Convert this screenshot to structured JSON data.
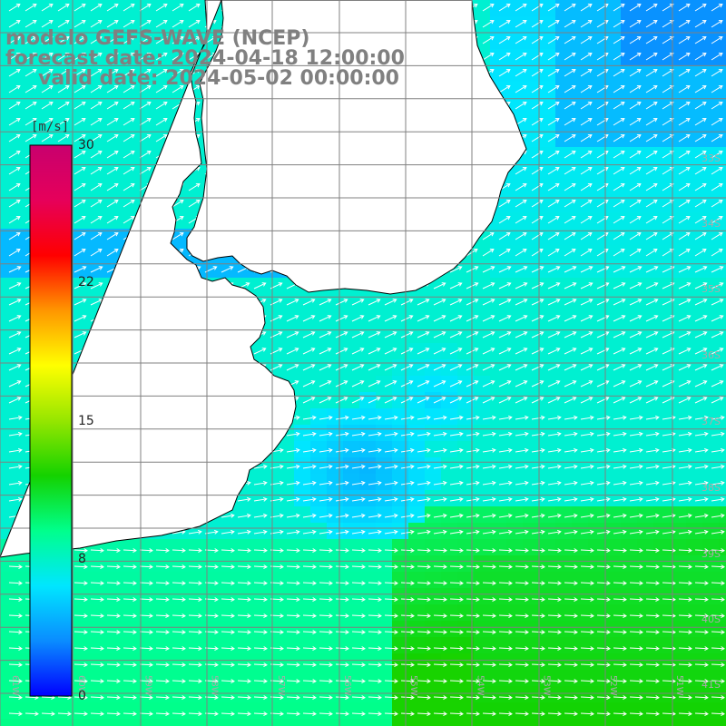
{
  "title": {
    "line1": "modelo GEFS-WAVE (NCEP)",
    "line2": "forecast date: 2024-04-18 12:00:00",
    "line3": "valid date: 2024-05-02 00:00:00"
  },
  "colorbar": {
    "unit": "[m/s]",
    "ticks": [
      "30",
      "22",
      "15",
      "8",
      "0"
    ],
    "stops": [
      "#0000ff",
      "#0a8cff",
      "#00e6ff",
      "#00ff8c",
      "#14d200",
      "#96e600",
      "#ffff00",
      "#ff9600",
      "#ff0000",
      "#e6005a",
      "#c8006e"
    ]
  },
  "lat_labels": [
    "33S",
    "34S",
    "35S",
    "36S",
    "37S",
    "38S",
    "39S",
    "40S",
    "41S"
  ],
  "lon_labels": [
    "61W",
    "60W",
    "59W",
    "58W",
    "57W",
    "56W",
    "55W",
    "54W",
    "53W",
    "52W",
    "51W"
  ],
  "colors": {
    "land": "#ffffff",
    "coast": "#000000",
    "grid": "#808080",
    "arrow": "#ffffff"
  }
}
